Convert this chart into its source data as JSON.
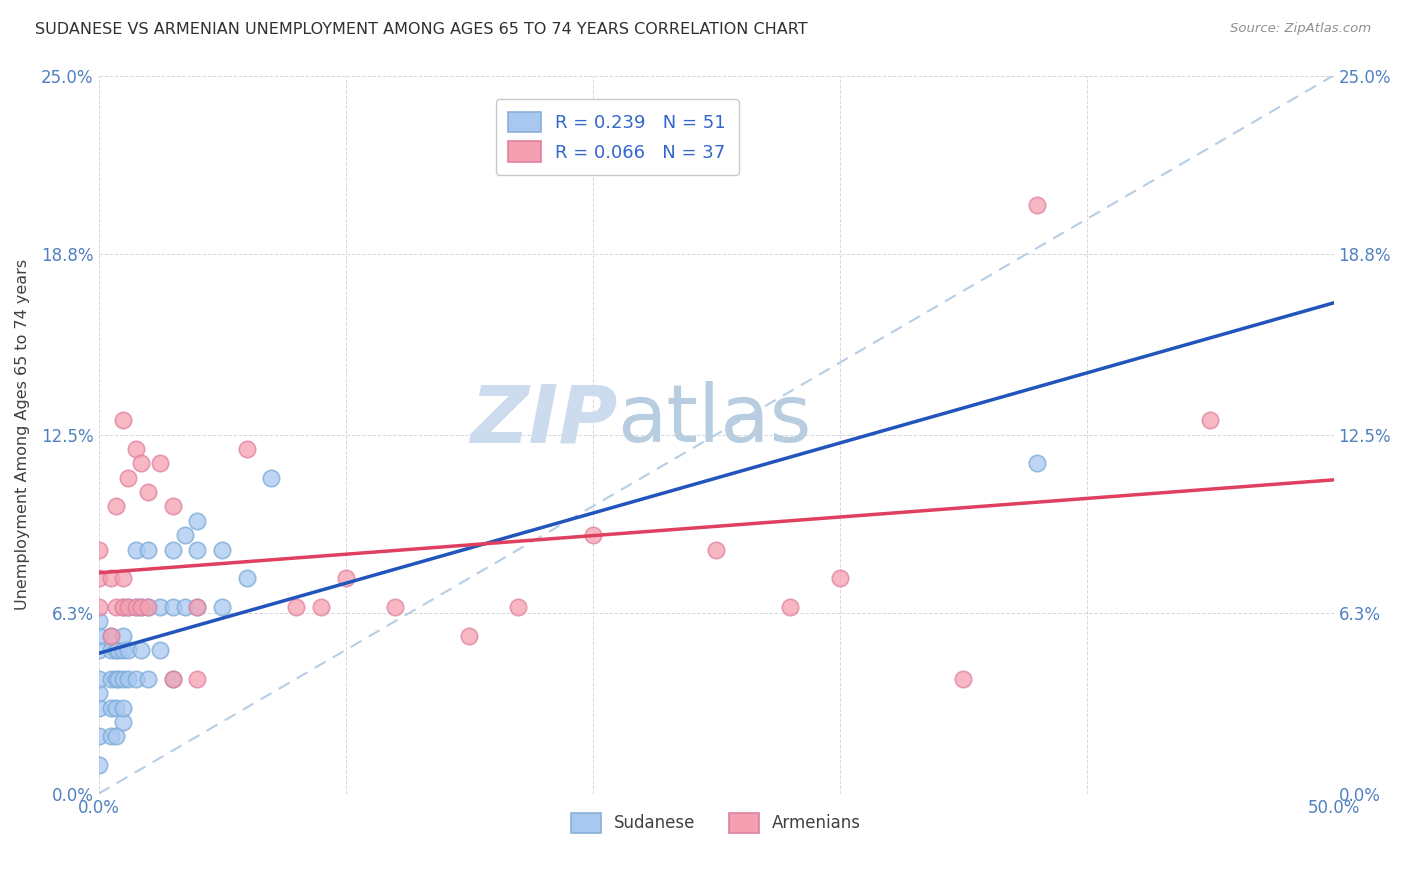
{
  "title": "SUDANESE VS ARMENIAN UNEMPLOYMENT AMONG AGES 65 TO 74 YEARS CORRELATION CHART",
  "source": "Source: ZipAtlas.com",
  "ylabel": "Unemployment Among Ages 65 to 74 years",
  "xlim": [
    0.0,
    0.5
  ],
  "ylim": [
    0.0,
    0.25
  ],
  "xtick_positions": [
    0.0,
    0.1,
    0.2,
    0.3,
    0.4,
    0.5
  ],
  "xtick_labels": [
    "0.0%",
    "",
    "",
    "",
    "",
    "50.0%"
  ],
  "ytick_positions": [
    0.0,
    0.063,
    0.125,
    0.188,
    0.25
  ],
  "ytick_labels": [
    "0.0%",
    "6.3%",
    "12.5%",
    "18.8%",
    "25.0%"
  ],
  "sudanese_color": "#a8c8f0",
  "armenian_color": "#f5a0b0",
  "sudanese_line_color": "#2255bb",
  "armenian_line_color": "#e04060",
  "diag_line_color": "#b0c8e0",
  "watermark_zip_color": "#ccdcec",
  "watermark_atlas_color": "#c0d8e8",
  "title_color": "#303030",
  "axis_label_color": "#5080c0",
  "source_color": "#909090",
  "legend_text_color": "#3366cc",
  "sudanese_R": 0.239,
  "sudanese_N": 51,
  "armenian_R": 0.066,
  "armenian_N": 37,
  "sudanese_x": [
    0.0,
    0.0,
    0.0,
    0.0,
    0.0,
    0.0,
    0.0,
    0.0,
    0.005,
    0.005,
    0.005,
    0.005,
    0.005,
    0.007,
    0.007,
    0.007,
    0.007,
    0.008,
    0.008,
    0.01,
    0.01,
    0.01,
    0.01,
    0.01,
    0.01,
    0.012,
    0.012,
    0.012,
    0.015,
    0.015,
    0.015,
    0.017,
    0.017,
    0.02,
    0.02,
    0.02,
    0.025,
    0.025,
    0.03,
    0.03,
    0.03,
    0.035,
    0.035,
    0.04,
    0.04,
    0.04,
    0.05,
    0.05,
    0.06,
    0.07,
    0.38
  ],
  "sudanese_y": [
    0.01,
    0.02,
    0.03,
    0.035,
    0.04,
    0.05,
    0.055,
    0.06,
    0.02,
    0.03,
    0.04,
    0.05,
    0.055,
    0.02,
    0.03,
    0.04,
    0.05,
    0.04,
    0.05,
    0.025,
    0.03,
    0.04,
    0.05,
    0.055,
    0.065,
    0.04,
    0.05,
    0.065,
    0.04,
    0.065,
    0.085,
    0.05,
    0.065,
    0.04,
    0.065,
    0.085,
    0.05,
    0.065,
    0.04,
    0.065,
    0.085,
    0.065,
    0.09,
    0.065,
    0.085,
    0.095,
    0.065,
    0.085,
    0.075,
    0.11,
    0.115
  ],
  "armenian_x": [
    0.0,
    0.0,
    0.0,
    0.005,
    0.005,
    0.007,
    0.007,
    0.01,
    0.01,
    0.01,
    0.012,
    0.012,
    0.015,
    0.015,
    0.017,
    0.017,
    0.02,
    0.02,
    0.025,
    0.03,
    0.03,
    0.04,
    0.04,
    0.06,
    0.08,
    0.09,
    0.1,
    0.12,
    0.15,
    0.17,
    0.2,
    0.25,
    0.28,
    0.3,
    0.35,
    0.38,
    0.45
  ],
  "armenian_y": [
    0.065,
    0.075,
    0.085,
    0.055,
    0.075,
    0.065,
    0.1,
    0.065,
    0.075,
    0.13,
    0.065,
    0.11,
    0.065,
    0.12,
    0.065,
    0.115,
    0.065,
    0.105,
    0.115,
    0.04,
    0.1,
    0.04,
    0.065,
    0.12,
    0.065,
    0.065,
    0.075,
    0.065,
    0.055,
    0.065,
    0.09,
    0.085,
    0.065,
    0.075,
    0.04,
    0.205,
    0.13
  ]
}
